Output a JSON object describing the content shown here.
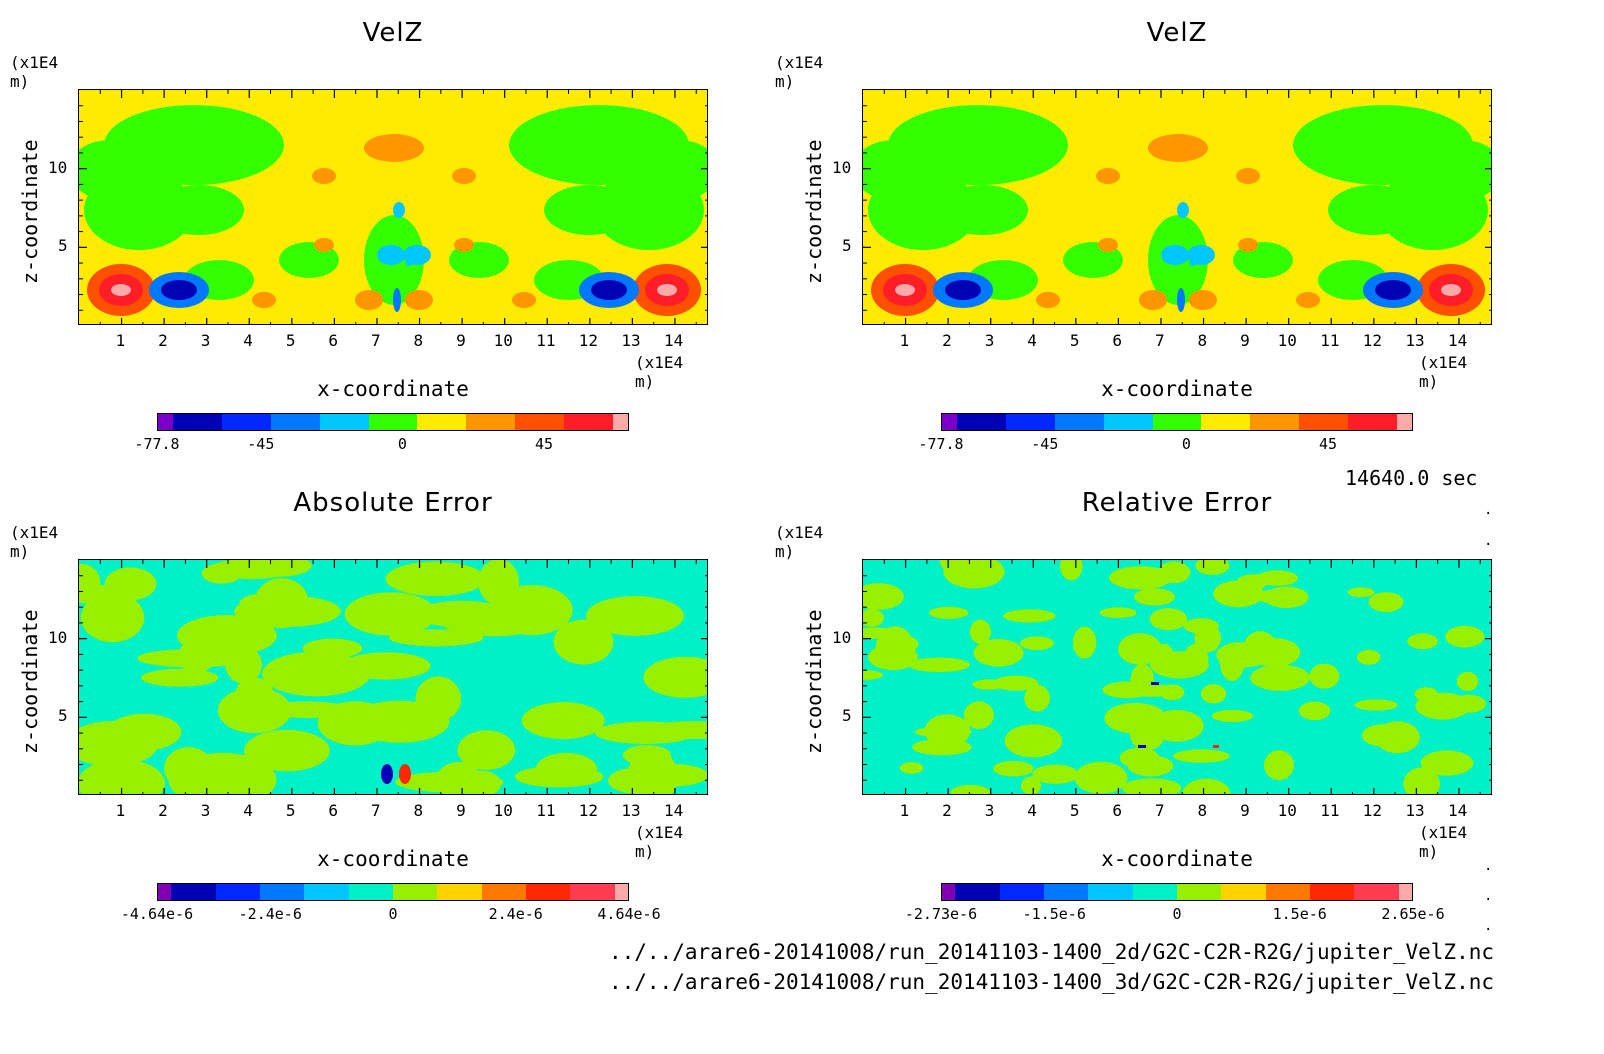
{
  "panels": [
    {
      "id": "p1",
      "title": "VelZ",
      "y_unit": "(x1E4 m)",
      "x_unit": "(x1E4 m)",
      "xlabel": "x-coordinate",
      "ylabel": "z-coordinate",
      "x_ticks": [
        "1",
        "2",
        "3",
        "4",
        "5",
        "6",
        "7",
        "8",
        "9",
        "10",
        "11",
        "12",
        "13",
        "14"
      ],
      "y_ticks": [
        "5",
        "10"
      ],
      "colorbar": {
        "colors": [
          "#7a00c8",
          "#0000b4",
          "#0028ff",
          "#0078ff",
          "#00c8ff",
          "#32ff00",
          "#ffeb00",
          "#ff9600",
          "#ff5000",
          "#ff1e28",
          "#ffaaaa"
        ],
        "labels": [
          "-77.8",
          "-45",
          "0",
          "45"
        ]
      }
    },
    {
      "id": "p2",
      "title": "VelZ",
      "y_unit": "(x1E4 m)",
      "x_unit": "(x1E4 m)",
      "xlabel": "x-coordinate",
      "ylabel": "z-coordinate",
      "x_ticks": [
        "1",
        "2",
        "3",
        "4",
        "5",
        "6",
        "7",
        "8",
        "9",
        "10",
        "11",
        "12",
        "13",
        "14"
      ],
      "y_ticks": [
        "5",
        "10"
      ],
      "colorbar": {
        "colors": [
          "#7a00c8",
          "#0000b4",
          "#0028ff",
          "#0078ff",
          "#00c8ff",
          "#32ff00",
          "#ffeb00",
          "#ff9600",
          "#ff5000",
          "#ff1e28",
          "#ffaaaa"
        ],
        "labels": [
          "-77.8",
          "-45",
          "0",
          "45"
        ]
      }
    },
    {
      "id": "p3",
      "title": "Absolute Error",
      "y_unit": "(x1E4 m)",
      "x_unit": "(x1E4 m)",
      "xlabel": "x-coordinate",
      "ylabel": "z-coordinate",
      "x_ticks": [
        "1",
        "2",
        "3",
        "4",
        "5",
        "6",
        "7",
        "8",
        "9",
        "10",
        "11",
        "12",
        "13",
        "14"
      ],
      "y_ticks": [
        "5",
        "10"
      ],
      "colorbar": {
        "colors": [
          "#8200b4",
          "#0000b4",
          "#0028ff",
          "#0078ff",
          "#00c8ff",
          "#00f0c8",
          "#96f000",
          "#ffd200",
          "#ff7800",
          "#ff2800",
          "#ff3c50",
          "#ffaaaa"
        ],
        "labels": [
          "-4.64e-6",
          "-2.4e-6",
          "0",
          "2.4e-6",
          "4.64e-6"
        ]
      }
    },
    {
      "id": "p4",
      "title": "Relative Error",
      "y_unit": "(x1E4 m)",
      "x_unit": "(x1E4 m)",
      "xlabel": "x-coordinate",
      "ylabel": "z-coordinate",
      "x_ticks": [
        "1",
        "2",
        "3",
        "4",
        "5",
        "6",
        "7",
        "8",
        "9",
        "10",
        "11",
        "12",
        "13",
        "14"
      ],
      "y_ticks": [
        "5",
        "10"
      ],
      "colorbar": {
        "colors": [
          "#8200b4",
          "#0000b4",
          "#0028ff",
          "#0078ff",
          "#00c8ff",
          "#00f0c8",
          "#96f000",
          "#ffd200",
          "#ff7800",
          "#ff2800",
          "#ff3c50",
          "#ffaaaa"
        ],
        "labels": [
          "-2.73e-6",
          "-1.5e-6",
          "0",
          "1.5e-6",
          "2.65e-6"
        ]
      }
    }
  ],
  "time_label": "14640.0 sec",
  "files": [
    "../../arare6-20141008/run_20141103-1400_2d/G2C-C2R-R2G/jupiter_VelZ.nc",
    "../../arare6-20141008/run_20141103-1400_3d/G2C-C2R-R2G/jupiter_VelZ.nc"
  ],
  "chart_data": [
    {
      "type": "heatmap",
      "title": "VelZ",
      "xlabel": "x-coordinate",
      "ylabel": "z-coordinate",
      "x_unit": "(x1E4 m)",
      "y_unit": "(x1E4 m)",
      "xlim": [
        0,
        14.8
      ],
      "ylim": [
        0,
        15
      ],
      "colorbar_labels": [
        "-77.8",
        "-45",
        "0",
        "45"
      ],
      "value_range": [
        -77.8,
        77.8
      ]
    },
    {
      "type": "heatmap",
      "title": "VelZ",
      "xlabel": "x-coordinate",
      "ylabel": "z-coordinate",
      "x_unit": "(x1E4 m)",
      "y_unit": "(x1E4 m)",
      "xlim": [
        0,
        14.8
      ],
      "ylim": [
        0,
        15
      ],
      "colorbar_labels": [
        "-77.8",
        "-45",
        "0",
        "45"
      ],
      "value_range": [
        -77.8,
        77.8
      ]
    },
    {
      "type": "heatmap",
      "title": "Absolute Error",
      "xlabel": "x-coordinate",
      "ylabel": "z-coordinate",
      "x_unit": "(x1E4 m)",
      "y_unit": "(x1E4 m)",
      "xlim": [
        0,
        14.8
      ],
      "ylim": [
        0,
        15
      ],
      "colorbar_labels": [
        "-4.64e-6",
        "-2.4e-6",
        "0",
        "2.4e-6",
        "4.64e-6"
      ],
      "value_range": [
        -4.64e-06,
        4.64e-06
      ]
    },
    {
      "type": "heatmap",
      "title": "Relative Error",
      "xlabel": "x-coordinate",
      "ylabel": "z-coordinate",
      "x_unit": "(x1E4 m)",
      "y_unit": "(x1E4 m)",
      "xlim": [
        0,
        14.8
      ],
      "ylim": [
        0,
        15
      ],
      "colorbar_labels": [
        "-2.73e-6",
        "-1.5e-6",
        "0",
        "1.5e-6",
        "2.65e-6"
      ],
      "value_range": [
        -2.73e-06,
        2.65e-06
      ]
    }
  ]
}
